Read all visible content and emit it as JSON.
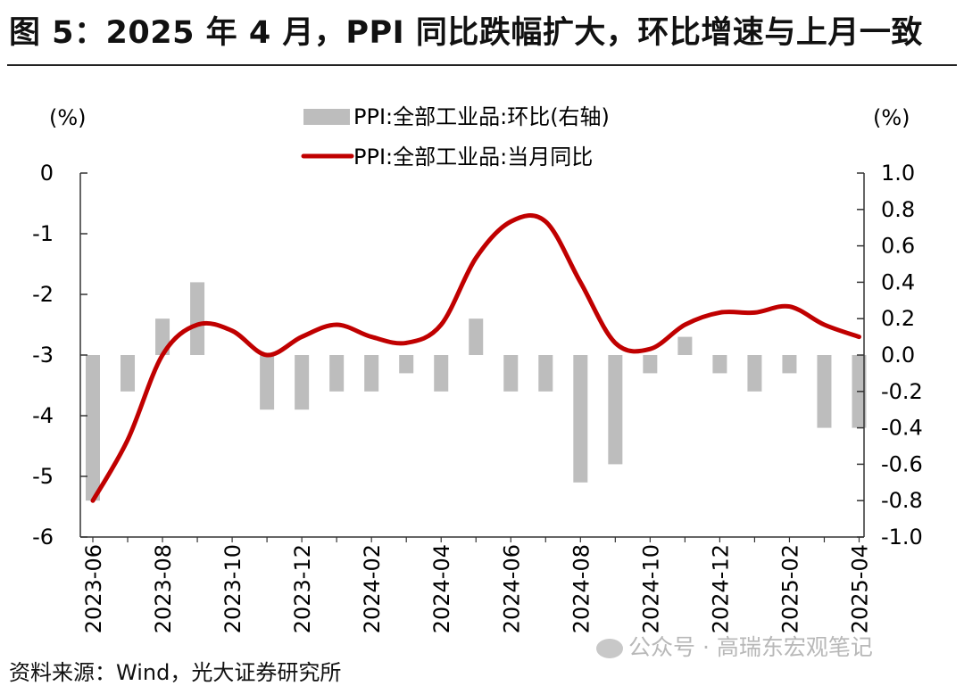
{
  "title": "图 5：2025 年 4 月，PPI 同比跌幅扩大，环比增速与上月一致",
  "source": "资料来源：Wind，光大证券研究所",
  "watermark": "公众号 · 高瑞东宏观笔记",
  "chart_data": {
    "type": "bar+line",
    "categories": [
      "2023-06",
      "2023-07",
      "2023-08",
      "2023-09",
      "2023-10",
      "2023-11",
      "2023-12",
      "2024-01",
      "2024-02",
      "2024-03",
      "2024-04",
      "2024-05",
      "2024-06",
      "2024-07",
      "2024-08",
      "2024-09",
      "2024-10",
      "2024-11",
      "2024-12",
      "2025-01",
      "2025-02",
      "2025-03",
      "2025-04"
    ],
    "x_tick_labels": [
      "2023-06",
      "2023-08",
      "2023-10",
      "2023-12",
      "2024-02",
      "2024-04",
      "2024-06",
      "2024-08",
      "2024-10",
      "2024-12",
      "2025-02",
      "2025-04"
    ],
    "left_axis": {
      "unit": "(%)",
      "ylim": [
        -6,
        0
      ],
      "ticks": [
        0,
        -1,
        -2,
        -3,
        -4,
        -5,
        -6
      ]
    },
    "right_axis": {
      "unit": "(%)",
      "ylim": [
        -1.0,
        1.0
      ],
      "ticks": [
        "1.0",
        "0.8",
        "0.6",
        "0.4",
        "0.2",
        "0.0",
        "-0.2",
        "-0.4",
        "-0.6",
        "-0.8",
        "-1.0"
      ]
    },
    "series": [
      {
        "name": "PPI:全部工业品:环比(右轴)",
        "type": "bar",
        "axis": "right",
        "color": "#bdbdbd",
        "values": [
          -0.8,
          -0.2,
          0.2,
          0.4,
          0.0,
          -0.3,
          -0.3,
          -0.2,
          -0.2,
          -0.1,
          -0.2,
          0.2,
          -0.2,
          -0.2,
          -0.7,
          -0.6,
          -0.1,
          0.1,
          -0.1,
          -0.2,
          -0.1,
          -0.4,
          -0.4
        ]
      },
      {
        "name": "PPI:全部工业品:当月同比",
        "type": "line",
        "axis": "left",
        "color": "#c00000",
        "values": [
          -5.4,
          -4.4,
          -3.0,
          -2.5,
          -2.6,
          -3.0,
          -2.7,
          -2.5,
          -2.7,
          -2.8,
          -2.5,
          -1.4,
          -0.8,
          -0.8,
          -1.8,
          -2.8,
          -2.9,
          -2.5,
          -2.3,
          -2.3,
          -2.2,
          -2.5,
          -2.7
        ]
      }
    ],
    "legend_position": "top-center",
    "grid": false
  }
}
